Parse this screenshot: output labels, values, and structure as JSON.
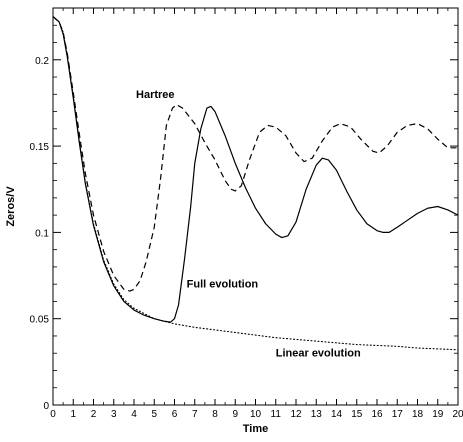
{
  "chart_data": {
    "type": "line",
    "title": "",
    "xlabel": "Time",
    "ylabel": "Zeros/V",
    "xlim": [
      0,
      20
    ],
    "ylim": [
      0,
      0.23
    ],
    "x_ticks": [
      0,
      1,
      2,
      3,
      4,
      5,
      6,
      7,
      8,
      9,
      10,
      11,
      12,
      13,
      14,
      15,
      16,
      17,
      18,
      19,
      20
    ],
    "x_tick_labels": [
      "0",
      "1",
      "2",
      "3",
      "4",
      "5",
      "6",
      "7",
      "8",
      "9",
      "10",
      "11",
      "12",
      "13",
      "14",
      "15",
      "16",
      "17",
      "18",
      "19",
      "20"
    ],
    "y_ticks": [
      0,
      0.05,
      0.1,
      0.15,
      0.2
    ],
    "y_tick_labels": [
      "0",
      "0.05",
      "0.1",
      "0.15",
      "0.2"
    ],
    "grid": false,
    "legend": "none",
    "annotations": [
      {
        "text": "Hartree",
        "x": 4.1,
        "y": 0.178
      },
      {
        "text": "Full evolution",
        "x": 6.6,
        "y": 0.068
      },
      {
        "text": "Linear evolution",
        "x": 11.0,
        "y": 0.028
      }
    ],
    "series": [
      {
        "style": "solid",
        "points": [
          [
            0.0,
            0.225
          ],
          [
            0.3,
            0.222
          ],
          [
            0.5,
            0.215
          ],
          [
            0.7,
            0.202
          ],
          [
            1.0,
            0.178
          ],
          [
            1.3,
            0.152
          ],
          [
            1.6,
            0.128
          ],
          [
            2.0,
            0.104
          ],
          [
            2.5,
            0.083
          ],
          [
            3.0,
            0.069
          ],
          [
            3.5,
            0.06
          ],
          [
            4.0,
            0.055
          ],
          [
            4.5,
            0.052
          ],
          [
            5.0,
            0.05
          ],
          [
            5.5,
            0.0485
          ],
          [
            5.8,
            0.048
          ],
          [
            6.0,
            0.05
          ],
          [
            6.2,
            0.058
          ],
          [
            6.5,
            0.085
          ],
          [
            6.8,
            0.115
          ],
          [
            7.0,
            0.14
          ],
          [
            7.3,
            0.16
          ],
          [
            7.6,
            0.172
          ],
          [
            7.8,
            0.173
          ],
          [
            8.0,
            0.17
          ],
          [
            8.5,
            0.156
          ],
          [
            9.0,
            0.14
          ],
          [
            9.5,
            0.126
          ],
          [
            10.0,
            0.114
          ],
          [
            10.5,
            0.105
          ],
          [
            11.0,
            0.099
          ],
          [
            11.3,
            0.097
          ],
          [
            11.6,
            0.098
          ],
          [
            12.0,
            0.106
          ],
          [
            12.5,
            0.125
          ],
          [
            13.0,
            0.139
          ],
          [
            13.3,
            0.143
          ],
          [
            13.6,
            0.142
          ],
          [
            14.0,
            0.136
          ],
          [
            14.5,
            0.124
          ],
          [
            15.0,
            0.113
          ],
          [
            15.5,
            0.105
          ],
          [
            16.0,
            0.101
          ],
          [
            16.3,
            0.1
          ],
          [
            16.6,
            0.1
          ],
          [
            17.0,
            0.103
          ],
          [
            17.5,
            0.107
          ],
          [
            18.0,
            0.111
          ],
          [
            18.5,
            0.114
          ],
          [
            19.0,
            0.115
          ],
          [
            19.5,
            0.113
          ],
          [
            20.0,
            0.11
          ]
        ]
      },
      {
        "style": "dashed",
        "points": [
          [
            0.0,
            0.225
          ],
          [
            0.3,
            0.222
          ],
          [
            0.5,
            0.216
          ],
          [
            0.7,
            0.204
          ],
          [
            1.0,
            0.181
          ],
          [
            1.3,
            0.157
          ],
          [
            1.6,
            0.134
          ],
          [
            2.0,
            0.11
          ],
          [
            2.5,
            0.089
          ],
          [
            3.0,
            0.075
          ],
          [
            3.5,
            0.067
          ],
          [
            3.8,
            0.066
          ],
          [
            4.0,
            0.067
          ],
          [
            4.3,
            0.072
          ],
          [
            4.6,
            0.083
          ],
          [
            5.0,
            0.103
          ],
          [
            5.3,
            0.13
          ],
          [
            5.6,
            0.162
          ],
          [
            5.9,
            0.172
          ],
          [
            6.1,
            0.174
          ],
          [
            6.4,
            0.172
          ],
          [
            7.0,
            0.163
          ],
          [
            7.5,
            0.152
          ],
          [
            8.0,
            0.142
          ],
          [
            8.5,
            0.13
          ],
          [
            8.8,
            0.125
          ],
          [
            9.0,
            0.124
          ],
          [
            9.3,
            0.127
          ],
          [
            9.7,
            0.142
          ],
          [
            10.2,
            0.158
          ],
          [
            10.6,
            0.162
          ],
          [
            11.0,
            0.161
          ],
          [
            11.5,
            0.156
          ],
          [
            12.0,
            0.146
          ],
          [
            12.4,
            0.141
          ],
          [
            12.8,
            0.143
          ],
          [
            13.3,
            0.153
          ],
          [
            13.8,
            0.161
          ],
          [
            14.2,
            0.163
          ],
          [
            14.7,
            0.161
          ],
          [
            15.2,
            0.154
          ],
          [
            15.8,
            0.147
          ],
          [
            16.1,
            0.146
          ],
          [
            16.5,
            0.15
          ],
          [
            17.0,
            0.158
          ],
          [
            17.5,
            0.162
          ],
          [
            18.0,
            0.163
          ],
          [
            18.5,
            0.16
          ],
          [
            19.0,
            0.154
          ],
          [
            19.5,
            0.149
          ],
          [
            20.0,
            0.149
          ]
        ]
      },
      {
        "style": "dotted",
        "points": [
          [
            0.0,
            0.225
          ],
          [
            0.3,
            0.222
          ],
          [
            0.5,
            0.216
          ],
          [
            0.7,
            0.203
          ],
          [
            1.0,
            0.179
          ],
          [
            1.3,
            0.153
          ],
          [
            1.6,
            0.129
          ],
          [
            2.0,
            0.105
          ],
          [
            2.5,
            0.084
          ],
          [
            3.0,
            0.07
          ],
          [
            3.5,
            0.061
          ],
          [
            4.0,
            0.056
          ],
          [
            4.5,
            0.053
          ],
          [
            5.0,
            0.05
          ],
          [
            6.0,
            0.047
          ],
          [
            7.0,
            0.045
          ],
          [
            8.0,
            0.0435
          ],
          [
            9.0,
            0.042
          ],
          [
            10.0,
            0.0405
          ],
          [
            11.0,
            0.039
          ],
          [
            12.0,
            0.038
          ],
          [
            13.0,
            0.037
          ],
          [
            14.0,
            0.036
          ],
          [
            15.0,
            0.035
          ],
          [
            16.0,
            0.0345
          ],
          [
            17.0,
            0.034
          ],
          [
            18.0,
            0.033
          ],
          [
            19.0,
            0.0325
          ],
          [
            20.0,
            0.032
          ]
        ]
      }
    ]
  }
}
